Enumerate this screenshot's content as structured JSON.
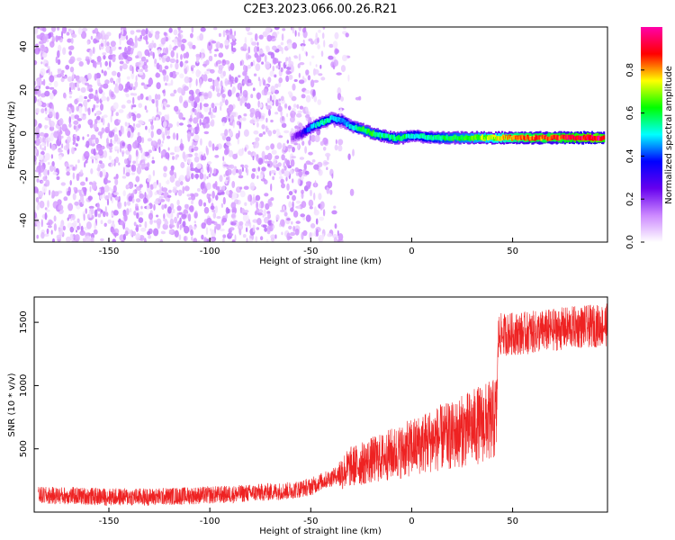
{
  "title": "C2E3.2023.066.00.26.R21",
  "chart_data": [
    {
      "type": "heatmap",
      "title": "C2E3.2023.066.00.26.R21",
      "xlabel": "Height of straight line (km)",
      "ylabel": "Frequency (Hz)",
      "xlim": [
        -187,
        97
      ],
      "ylim": [
        -50,
        49
      ],
      "xticks": [
        -150,
        -100,
        -50,
        0,
        50
      ],
      "yticks": [
        -40,
        -20,
        0,
        20,
        40
      ],
      "colorbar": {
        "label": "Normalized spectral amplitude",
        "range": [
          0,
          1
        ],
        "ticks": [
          "0.0",
          "0.2",
          "0.4",
          "0.6",
          "0.8"
        ],
        "colors": [
          "#ffffff",
          "#cc88ff",
          "#6600ee",
          "#0000ff",
          "#00ffff",
          "#00ff00",
          "#ffff00",
          "#ff0000",
          "#ff00aa"
        ]
      },
      "ridge": {
        "x": [
          -60,
          -55,
          -50,
          -45,
          -40,
          -35,
          -30,
          -25,
          -20,
          -15,
          -10,
          -5,
          0,
          10,
          20,
          30,
          40,
          50,
          60,
          70,
          80,
          90,
          95
        ],
        "frequency": [
          -2,
          0,
          3,
          5,
          7,
          6,
          3,
          2,
          0,
          -1,
          -2,
          -2,
          -1,
          -2,
          -2,
          -2,
          -2,
          -2,
          -2,
          -2,
          -2,
          -2,
          -2
        ],
        "amplitude": [
          0.15,
          0.3,
          0.45,
          0.55,
          0.5,
          0.45,
          0.5,
          0.6,
          0.6,
          0.55,
          0.55,
          0.6,
          0.5,
          0.55,
          0.6,
          0.65,
          0.7,
          0.8,
          0.85,
          0.85,
          0.9,
          0.95,
          0.9
        ]
      },
      "noise_region": {
        "x_from": -187,
        "x_to": -35,
        "amplitude": 0.1
      }
    },
    {
      "type": "line",
      "xlabel": "Height of straight line (km)",
      "ylabel": "SNR (10 * v/v)",
      "xlim": [
        -187,
        97
      ],
      "ylim": [
        0,
        1700
      ],
      "xticks": [
        -150,
        -100,
        -50,
        0,
        50
      ],
      "yticks": [
        500,
        1000,
        1500
      ],
      "color": "#ee2222",
      "x": [
        -185,
        -170,
        -150,
        -130,
        -110,
        -90,
        -70,
        -60,
        -50,
        -45,
        -40,
        -35,
        -30,
        -25,
        -20,
        -15,
        -10,
        -5,
        0,
        5,
        10,
        15,
        20,
        25,
        30,
        35,
        40,
        42,
        43,
        50,
        60,
        70,
        80,
        90,
        97
      ],
      "values": [
        130,
        130,
        120,
        120,
        130,
        140,
        160,
        170,
        200,
        240,
        270,
        310,
        360,
        380,
        410,
        430,
        460,
        480,
        510,
        540,
        570,
        590,
        600,
        640,
        670,
        700,
        720,
        760,
        1400,
        1410,
        1420,
        1440,
        1460,
        1470,
        1480
      ]
    }
  ]
}
